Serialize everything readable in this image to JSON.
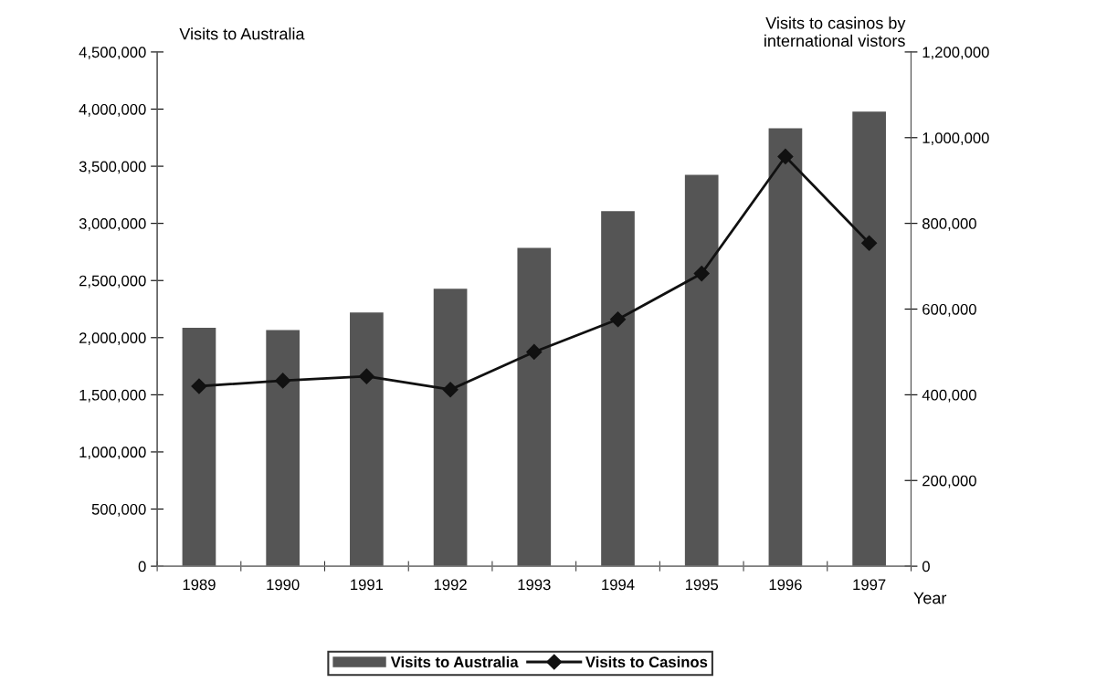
{
  "chart_data": {
    "type": "bar",
    "categories": [
      "1989",
      "1990",
      "1991",
      "1992",
      "1993",
      "1994",
      "1995",
      "1996",
      "1997"
    ],
    "series": [
      {
        "name": "Visits to Australia",
        "color": "#555555",
        "values": [
          2086000,
          2067000,
          2220000,
          2428000,
          2786000,
          3107000,
          3425000,
          3832000,
          3979000
        ]
      },
      {
        "name": "Visits to Casinos",
        "type": "line",
        "axis": "y2",
        "color": "#111111",
        "marker": "diamond",
        "line_style": "solid",
        "values": [
          420000,
          433000,
          443000,
          412000,
          500000,
          576000,
          683000,
          956000,
          754000
        ]
      }
    ],
    "ylabel": "Visits to Australia",
    "y2label": "Visits to casinos by\ninternational vistors",
    "xlabel": "Year",
    "ylim": [
      0,
      4500000
    ],
    "yticks": [
      {
        "value": 0,
        "label": "0"
      },
      {
        "value": 500000,
        "label": "500,000"
      },
      {
        "value": 1000000,
        "label": "1,000,000"
      },
      {
        "value": 1500000,
        "label": "1,500,000"
      },
      {
        "value": 2000000,
        "label": "2,000,000"
      },
      {
        "value": 2500000,
        "label": "2,500,000"
      },
      {
        "value": 3000000,
        "label": "3,000,000"
      },
      {
        "value": 3500000,
        "label": "3,500,000"
      },
      {
        "value": 4000000,
        "label": "4,000,000"
      },
      {
        "value": 4500000,
        "label": "4,500,000"
      }
    ],
    "y2lim": [
      0,
      1200000
    ],
    "y2ticks": [
      {
        "value": 0,
        "label": "0"
      },
      {
        "value": 200000,
        "label": "200,000"
      },
      {
        "value": 400000,
        "label": "400,000"
      },
      {
        "value": 600000,
        "label": "600,000"
      },
      {
        "value": 800000,
        "label": "800,000"
      },
      {
        "value": 1000000,
        "label": "1,000,000"
      },
      {
        "value": 1200000,
        "label": "1,200,000"
      }
    ],
    "grid": false,
    "legend": "bottom"
  }
}
